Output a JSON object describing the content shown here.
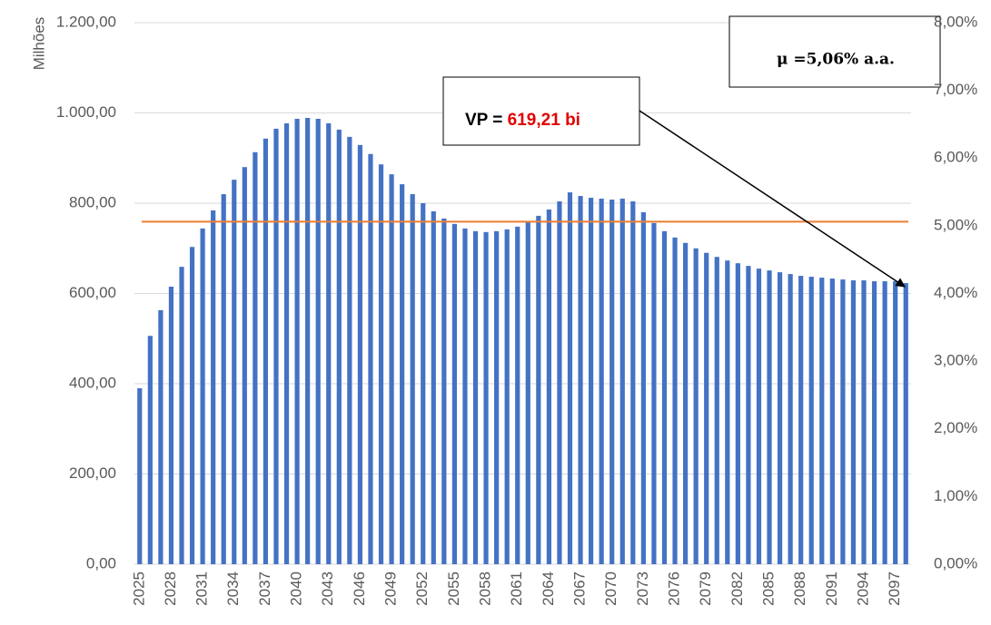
{
  "chart_data": {
    "type": "bar",
    "y_axis_label": "Milhões",
    "categories": [
      2025,
      null,
      null,
      2028,
      null,
      null,
      2031,
      null,
      null,
      2034,
      null,
      null,
      2037,
      null,
      null,
      2040,
      null,
      null,
      2043,
      null,
      null,
      2046,
      null,
      null,
      2049,
      null,
      null,
      2052,
      null,
      null,
      2055,
      null,
      null,
      2058,
      null,
      null,
      2061,
      null,
      null,
      2064,
      null,
      null,
      2067,
      null,
      null,
      2070,
      null,
      null,
      2073,
      null,
      null,
      2076,
      null,
      null,
      2079,
      null,
      null,
      2082,
      null,
      null,
      2085,
      null,
      null,
      2088,
      null,
      null,
      2091,
      null,
      null,
      2094,
      null,
      null,
      2097,
      null
    ],
    "values": [
      390,
      506,
      563,
      615,
      659,
      703,
      744,
      784,
      820,
      852,
      880,
      913,
      943,
      965,
      977,
      987,
      989,
      987,
      977,
      963,
      947,
      929,
      909,
      886,
      864,
      842,
      820,
      800,
      782,
      766,
      754,
      744,
      738,
      736,
      738,
      742,
      748,
      760,
      772,
      786,
      804,
      824,
      816,
      812,
      810,
      808,
      810,
      804,
      780,
      756,
      738,
      724,
      712,
      700,
      690,
      681,
      673,
      667,
      661,
      655,
      651,
      647,
      643,
      639,
      637,
      635,
      633,
      631,
      629,
      629,
      627,
      627,
      627,
      623
    ],
    "color": "#4472c4",
    "ylim": [
      0,
      1200
    ],
    "yticks": [
      {
        "value": 0,
        "label": "0,00"
      },
      {
        "value": 200,
        "label": "200,00"
      },
      {
        "value": 400,
        "label": "400,00"
      },
      {
        "value": 600,
        "label": "600,00"
      },
      {
        "value": 800,
        "label": "800,00"
      },
      {
        "value": 1000,
        "label": "1.000,00"
      },
      {
        "value": 1200,
        "label": "1.200,00"
      }
    ],
    "y2lim": [
      0,
      8
    ],
    "y2ticks": [
      {
        "value": 0,
        "label": "0,00%"
      },
      {
        "value": 1,
        "label": "1,00%"
      },
      {
        "value": 2,
        "label": "2,00%"
      },
      {
        "value": 3,
        "label": "3,00%"
      },
      {
        "value": 4,
        "label": "4,00%"
      },
      {
        "value": 5,
        "label": "5,00%"
      },
      {
        "value": 6,
        "label": "6,00%"
      },
      {
        "value": 7,
        "label": "7,00%"
      },
      {
        "value": 8,
        "label": "8,00%"
      }
    ],
    "reference_line": {
      "value": 5.06,
      "axis": "y2",
      "color": "#ed7d31"
    },
    "grid": true,
    "annotations": {
      "mean": "μ =5,06% a.a.",
      "vp_label": "VP =",
      "vp_value": "619,21 bi"
    }
  }
}
